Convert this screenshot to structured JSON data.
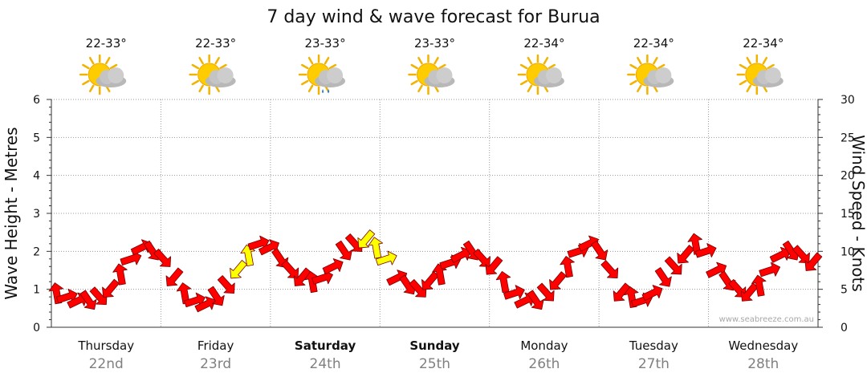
{
  "chart_data": {
    "type": "line",
    "title": "7 day wind & wave forecast for Burua",
    "ylabel_left": "Wave Height - Metres",
    "ylabel_right": "Wind Speed - Knots",
    "ylim_left": [
      0,
      6
    ],
    "ylim_right": [
      0,
      30
    ],
    "yticks_left": [
      "0",
      "1",
      "2",
      "3",
      "4",
      "5",
      "6"
    ],
    "yticks_right": [
      "0",
      "5",
      "10",
      "15",
      "20",
      "25",
      "30"
    ],
    "grid": true,
    "days": [
      {
        "day": "Thursday",
        "date": "22nd",
        "bold": false,
        "temp": "22-33°",
        "icon": "partly-cloudy-icon"
      },
      {
        "day": "Friday",
        "date": "23rd",
        "bold": false,
        "temp": "22-33°",
        "icon": "partly-cloudy-icon"
      },
      {
        "day": "Saturday",
        "date": "24th",
        "bold": true,
        "temp": "23-33°",
        "icon": "partly-cloudy-rain-icon"
      },
      {
        "day": "Sunday",
        "date": "25th",
        "bold": true,
        "temp": "23-33°",
        "icon": "partly-cloudy-icon"
      },
      {
        "day": "Monday",
        "date": "26th",
        "bold": false,
        "temp": "22-34°",
        "icon": "partly-cloudy-icon"
      },
      {
        "day": "Tuesday",
        "date": "27th",
        "bold": false,
        "temp": "22-34°",
        "icon": "partly-cloudy-icon"
      },
      {
        "day": "Wednesday",
        "date": "28th",
        "bold": false,
        "temp": "22-34°",
        "icon": "partly-cloudy-icon"
      }
    ],
    "series": [
      {
        "name": "Wind Speed",
        "units": "knots",
        "arrow_color": "#ff0000",
        "highlight_color": "#ffff00",
        "values": [
          4.5,
          4.0,
          3.5,
          3.5,
          4.0,
          5.0,
          7.0,
          9.0,
          10.5,
          10.0,
          9.0,
          6.5,
          4.5,
          3.5,
          3.0,
          4.0,
          5.5,
          7.5,
          9.5,
          11.0,
          10.5,
          9.0,
          7.5,
          6.5,
          6.0,
          6.5,
          8.0,
          10.0,
          11.0,
          11.5,
          10.5,
          9.0,
          6.5,
          5.5,
          5.0,
          6.0,
          7.0,
          8.5,
          9.5,
          10.0,
          9.0,
          8.0,
          6.0,
          4.5,
          3.5,
          3.5,
          4.5,
          6.0,
          8.0,
          10.0,
          11.0,
          10.0,
          7.5,
          4.5,
          4.0,
          3.5,
          4.5,
          6.5,
          8.0,
          9.5,
          11.0,
          10.0,
          7.5,
          6.0,
          5.0,
          4.5,
          5.5,
          7.5,
          9.5,
          10.0,
          9.5,
          8.5
        ],
        "highlighted_indices": [
          17,
          18,
          29,
          30,
          31
        ]
      }
    ],
    "watermark": "www.seabreeze.com.au"
  }
}
